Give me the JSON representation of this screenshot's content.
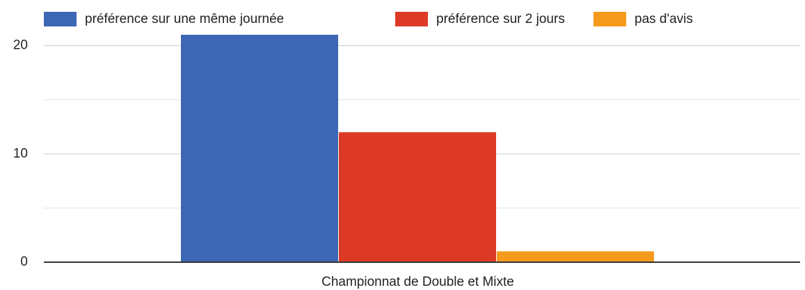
{
  "chart_data": {
    "type": "bar",
    "categories": [
      "Championnat de Double et Mixte"
    ],
    "series": [
      {
        "name": "préférence sur une même journée",
        "color": "#3d66b4",
        "values": [
          21
        ]
      },
      {
        "name": "préférence sur 2 jours",
        "color": "#dc3a26",
        "values": [
          12
        ]
      },
      {
        "name": "pas d'avis",
        "color": "#f59a1d",
        "values": [
          1
        ]
      }
    ],
    "ylim": [
      0,
      21
    ],
    "yticks": [
      0,
      10,
      20
    ],
    "minor_yticks": [
      5,
      15
    ],
    "grid": true,
    "legend": "top"
  }
}
